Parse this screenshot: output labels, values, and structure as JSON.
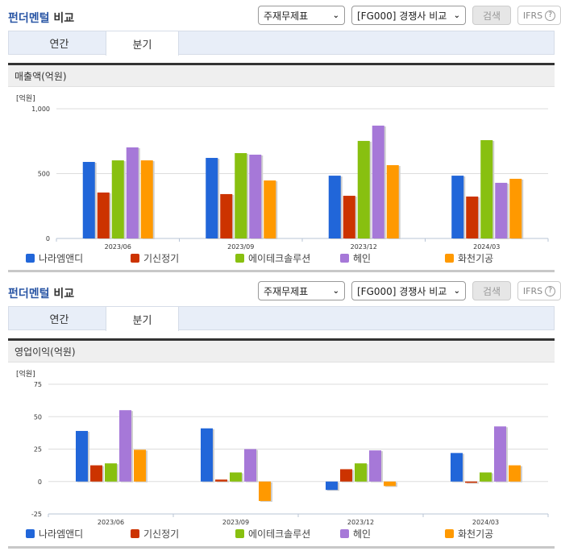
{
  "sections": [
    {
      "title_part1": "펀더멘털",
      "title_part2": "비교",
      "controls": {
        "statement_select": "주재무제표",
        "group_select": "[FG000] 경쟁사 비교",
        "search_button": "검색",
        "ifrs_button": "IFRS",
        "help_icon": "?"
      },
      "tabs": [
        {
          "label": "연간",
          "active": false
        },
        {
          "label": "분기",
          "active": true
        }
      ],
      "metric_title": "매출액(억원)",
      "unit_label": "[억원]"
    },
    {
      "title_part1": "펀더멘털",
      "title_part2": "비교",
      "controls": {
        "statement_select": "주재무제표",
        "group_select": "[FG000] 경쟁사 비교",
        "search_button": "검색",
        "ifrs_button": "IFRS",
        "help_icon": "?"
      },
      "tabs": [
        {
          "label": "연간",
          "active": false
        },
        {
          "label": "분기",
          "active": true
        }
      ],
      "metric_title": "영업이익(억원)",
      "unit_label": "[억원]"
    }
  ],
  "colors": {
    "나라엠앤디": "#2166d9",
    "기신정기": "#cc3300",
    "에이테크솔루션": "#88c010",
    "헤인": "#a678d8",
    "화천기공": "#ff9900"
  },
  "chart_data": [
    {
      "type": "bar",
      "title": "매출액(억원)",
      "ylabel": "[억원]",
      "xlabel": "",
      "categories": [
        "2023/06",
        "2023/09",
        "2023/12",
        "2024/03"
      ],
      "yticks": [
        "0",
        "500",
        "1,000"
      ],
      "ylim": [
        0,
        1000
      ],
      "grid": true,
      "legend_position": "bottom",
      "series": [
        {
          "name": "나라엠앤디",
          "color": "#2166d9",
          "values": [
            590,
            621,
            484,
            484
          ]
        },
        {
          "name": "기신정기",
          "color": "#cc3300",
          "values": [
            354,
            342,
            329,
            323
          ]
        },
        {
          "name": "에이테크솔루션",
          "color": "#88c010",
          "values": [
            602,
            658,
            752,
            758
          ]
        },
        {
          "name": "헤인",
          "color": "#a678d8",
          "values": [
            702,
            646,
            870,
            429
          ]
        },
        {
          "name": "화천기공",
          "color": "#ff9900",
          "values": [
            602,
            447,
            565,
            460
          ]
        }
      ]
    },
    {
      "type": "bar",
      "title": "영업이익(억원)",
      "ylabel": "[억원]",
      "xlabel": "",
      "categories": [
        "2023/06",
        "2023/09",
        "2023/12",
        "2024/03"
      ],
      "yticks": [
        "-25",
        "0",
        "25",
        "50",
        "75"
      ],
      "ylim": [
        -25,
        75
      ],
      "grid": true,
      "legend_position": "bottom",
      "series": [
        {
          "name": "나라엠앤디",
          "color": "#2166d9",
          "values": [
            39,
            41,
            -6.5,
            22
          ]
        },
        {
          "name": "기신정기",
          "color": "#cc3300",
          "values": [
            12.5,
            1.5,
            9.5,
            -1
          ]
        },
        {
          "name": "에이테크솔루션",
          "color": "#88c010",
          "values": [
            14,
            7,
            14,
            7
          ]
        },
        {
          "name": "헤인",
          "color": "#a678d8",
          "values": [
            55,
            25,
            24,
            42.5
          ]
        },
        {
          "name": "화천기공",
          "color": "#ff9900",
          "values": [
            24.5,
            -15,
            -3.5,
            12.5
          ]
        }
      ]
    }
  ]
}
